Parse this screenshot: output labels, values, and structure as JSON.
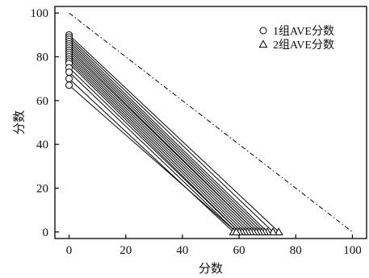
{
  "chart_data": {
    "type": "line",
    "xlabel": "分数",
    "ylabel": "分数",
    "xlim": [
      -5,
      105
    ],
    "ylim": [
      -3,
      103
    ],
    "xticks": [
      0,
      20,
      40,
      60,
      80,
      100
    ],
    "yticks": [
      0,
      20,
      40,
      60,
      80,
      100
    ],
    "grid": false,
    "legend_position": "top-right",
    "legend": [
      {
        "label": "1组AVE分数",
        "marker": "circle"
      },
      {
        "label": "2组AVE分数",
        "marker": "triangle"
      }
    ],
    "reference_line": {
      "x": [
        0,
        100
      ],
      "y": [
        100,
        0
      ],
      "style": "dash-dot"
    },
    "series": [
      {
        "marker": "circle",
        "x": [
          0,
          0,
          0,
          0,
          0,
          0,
          0,
          0,
          0,
          0,
          0,
          0,
          0,
          0,
          0,
          0,
          0,
          0
        ],
        "y": [
          90,
          89,
          88,
          87,
          86,
          85,
          84,
          83,
          82,
          81,
          80,
          79,
          78,
          77,
          75,
          73,
          70,
          67
        ]
      },
      {
        "marker": "triangle",
        "x": [
          74,
          72,
          70,
          69,
          68,
          67,
          66,
          66,
          65,
          64,
          63,
          62,
          61,
          60,
          60,
          59,
          58,
          59
        ],
        "y": [
          0,
          0,
          0,
          0,
          0,
          0,
          0,
          0,
          0,
          0,
          0,
          0,
          0,
          0,
          0,
          0,
          0,
          0
        ]
      }
    ]
  }
}
